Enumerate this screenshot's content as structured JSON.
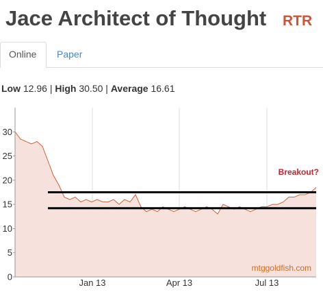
{
  "header": {
    "title": "Jace Architect of Thought",
    "set": "RTR"
  },
  "tabs": [
    "Online",
    "Paper"
  ],
  "stats": {
    "items": [
      {
        "label": "Low",
        "value": "12.96"
      },
      {
        "label": "High",
        "value": "30.50"
      },
      {
        "label": "Average",
        "value": "16.61"
      }
    ],
    "separator": "|"
  },
  "chart_data": {
    "type": "line",
    "x": [
      0,
      1,
      2,
      3,
      4,
      5,
      6,
      7,
      8,
      9,
      10,
      11,
      12,
      13,
      14,
      15,
      16,
      17,
      18,
      19,
      20,
      21,
      22,
      23,
      24,
      25,
      26,
      27,
      28,
      29,
      30,
      31,
      32,
      33,
      34,
      35,
      36,
      37,
      38,
      39,
      40,
      41,
      42,
      43,
      44,
      45,
      46,
      47,
      48,
      49,
      50,
      51,
      52,
      53,
      54,
      55
    ],
    "series": [
      {
        "color": "#c8643c",
        "fill": "#f6e1dc",
        "values": [
          30,
          28.5,
          28,
          27.5,
          28,
          27,
          24,
          21,
          19,
          16.5,
          16,
          16.5,
          15.5,
          16,
          15.5,
          16,
          15.5,
          15.5,
          16,
          15,
          16,
          15.5,
          17,
          14.5,
          13.5,
          14,
          13.5,
          14.5,
          14,
          13.5,
          14,
          14.5,
          14,
          13.5,
          14,
          14.5,
          14,
          13,
          15,
          14.5,
          14,
          14.5,
          14,
          13.5,
          14,
          14.5,
          14.5,
          15,
          15,
          15.5,
          16.5,
          16.5,
          17,
          17,
          17.5,
          18.5
        ]
      }
    ],
    "xlim": [
      0,
      55
    ],
    "xticks": [
      {
        "value": 14.125,
        "label": "Jan 13"
      },
      {
        "value": 30,
        "label": "Apr 13"
      },
      {
        "value": 46,
        "label": "Jul 13"
      }
    ],
    "ylim": [
      0,
      35
    ],
    "yticks": [
      0,
      5,
      10,
      15,
      20,
      25,
      30
    ],
    "xgrid": true,
    "hlines": {
      "values": [
        17.5,
        14.2
      ],
      "start": 6,
      "color": "#000000"
    },
    "annotation": {
      "text": "Breakout?",
      "color": "#d0202a"
    },
    "watermark": {
      "text": "mtggoldfish.com",
      "color": "#d2691e"
    }
  }
}
